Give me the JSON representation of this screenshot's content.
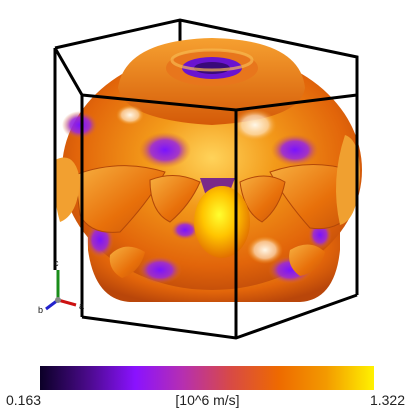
{
  "colorbar": {
    "min_label": "0.163",
    "max_label": "1.322",
    "unit_label": "[10^6 m/s]",
    "min_value": 0.163,
    "max_value": 1.322,
    "gradient_colors": [
      "#0b0027",
      "#4a0a8a",
      "#8a12ff",
      "#b62fb0",
      "#d84a45",
      "#ee6a00",
      "#f39a00",
      "#fff200"
    ]
  },
  "axes_triad": {
    "labels": [
      "c",
      "a",
      "b"
    ],
    "colors": {
      "c": "#1a8c1a",
      "a": "#cc1111",
      "b": "#2222cc"
    }
  },
  "scene": {
    "description_colors": {
      "surface_base": "#f07a00",
      "surface_highlight": "#ffe600",
      "surface_low": "#7a10e0",
      "cell_edges": "#000000"
    }
  }
}
